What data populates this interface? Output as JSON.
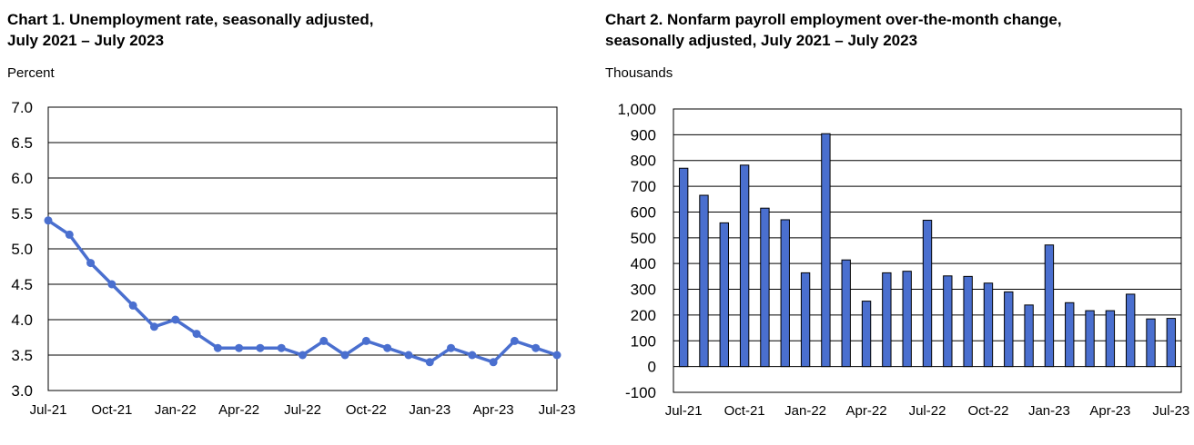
{
  "chart_data": [
    {
      "type": "line",
      "title_line1": "Chart 1. Unemployment rate, seasonally adjusted,",
      "title_line2": "July 2021 – July 2023",
      "ylabel": "Percent",
      "ylim": [
        3.0,
        7.0
      ],
      "yticks": [
        "3.0",
        "3.5",
        "4.0",
        "4.5",
        "5.0",
        "5.5",
        "6.0",
        "6.5",
        "7.0"
      ],
      "ytick_values": [
        3.0,
        3.5,
        4.0,
        4.5,
        5.0,
        5.5,
        6.0,
        6.5,
        7.0
      ],
      "xticks": [
        "Jul-21",
        "Oct-21",
        "Jan-22",
        "Apr-22",
        "Jul-22",
        "Oct-22",
        "Jan-23",
        "Apr-23",
        "Jul-23"
      ],
      "x": [
        "Jul-21",
        "Aug-21",
        "Sep-21",
        "Oct-21",
        "Nov-21",
        "Dec-21",
        "Jan-22",
        "Feb-22",
        "Mar-22",
        "Apr-22",
        "May-22",
        "Jun-22",
        "Jul-22",
        "Aug-22",
        "Sep-22",
        "Oct-22",
        "Nov-22",
        "Dec-22",
        "Jan-23",
        "Feb-23",
        "Mar-23",
        "Apr-23",
        "May-23",
        "Jun-23",
        "Jul-23"
      ],
      "values": [
        5.4,
        5.2,
        4.8,
        4.5,
        4.2,
        3.9,
        4.0,
        3.8,
        3.6,
        3.6,
        3.6,
        3.6,
        3.5,
        3.7,
        3.5,
        3.7,
        3.6,
        3.5,
        3.4,
        3.6,
        3.5,
        3.4,
        3.7,
        3.6,
        3.5
      ],
      "color": "#4a6fcf",
      "grid": true
    },
    {
      "type": "bar",
      "title_line1": "Chart 2. Nonfarm payroll employment over-the-month change,",
      "title_line2": "seasonally adjusted, July 2021 – July 2023",
      "ylabel": "Thousands",
      "ylim": [
        -100,
        1000
      ],
      "yticks": [
        "-100",
        "0",
        "100",
        "200",
        "300",
        "400",
        "500",
        "600",
        "700",
        "800",
        "900",
        "1,000"
      ],
      "ytick_values": [
        -100,
        0,
        100,
        200,
        300,
        400,
        500,
        600,
        700,
        800,
        900,
        1000
      ],
      "xticks": [
        "Jul-21",
        "Oct-21",
        "Jan-22",
        "Apr-22",
        "Jul-22",
        "Oct-22",
        "Jan-23",
        "Apr-23",
        "Jul-23"
      ],
      "categories": [
        "Jul-21",
        "Aug-21",
        "Sep-21",
        "Oct-21",
        "Nov-21",
        "Dec-21",
        "Jan-22",
        "Feb-22",
        "Mar-22",
        "Apr-22",
        "May-22",
        "Jun-22",
        "Jul-22",
        "Aug-22",
        "Sep-22",
        "Oct-22",
        "Nov-22",
        "Dec-22",
        "Jan-23",
        "Feb-23",
        "Mar-23",
        "Apr-23",
        "May-23",
        "Jun-23",
        "Jul-23"
      ],
      "values": [
        770,
        665,
        558,
        782,
        615,
        570,
        364,
        904,
        414,
        254,
        364,
        370,
        568,
        352,
        350,
        324,
        290,
        239,
        472,
        248,
        217,
        217,
        281,
        185,
        187
      ],
      "color": "#4a6fcf",
      "grid": true
    }
  ]
}
